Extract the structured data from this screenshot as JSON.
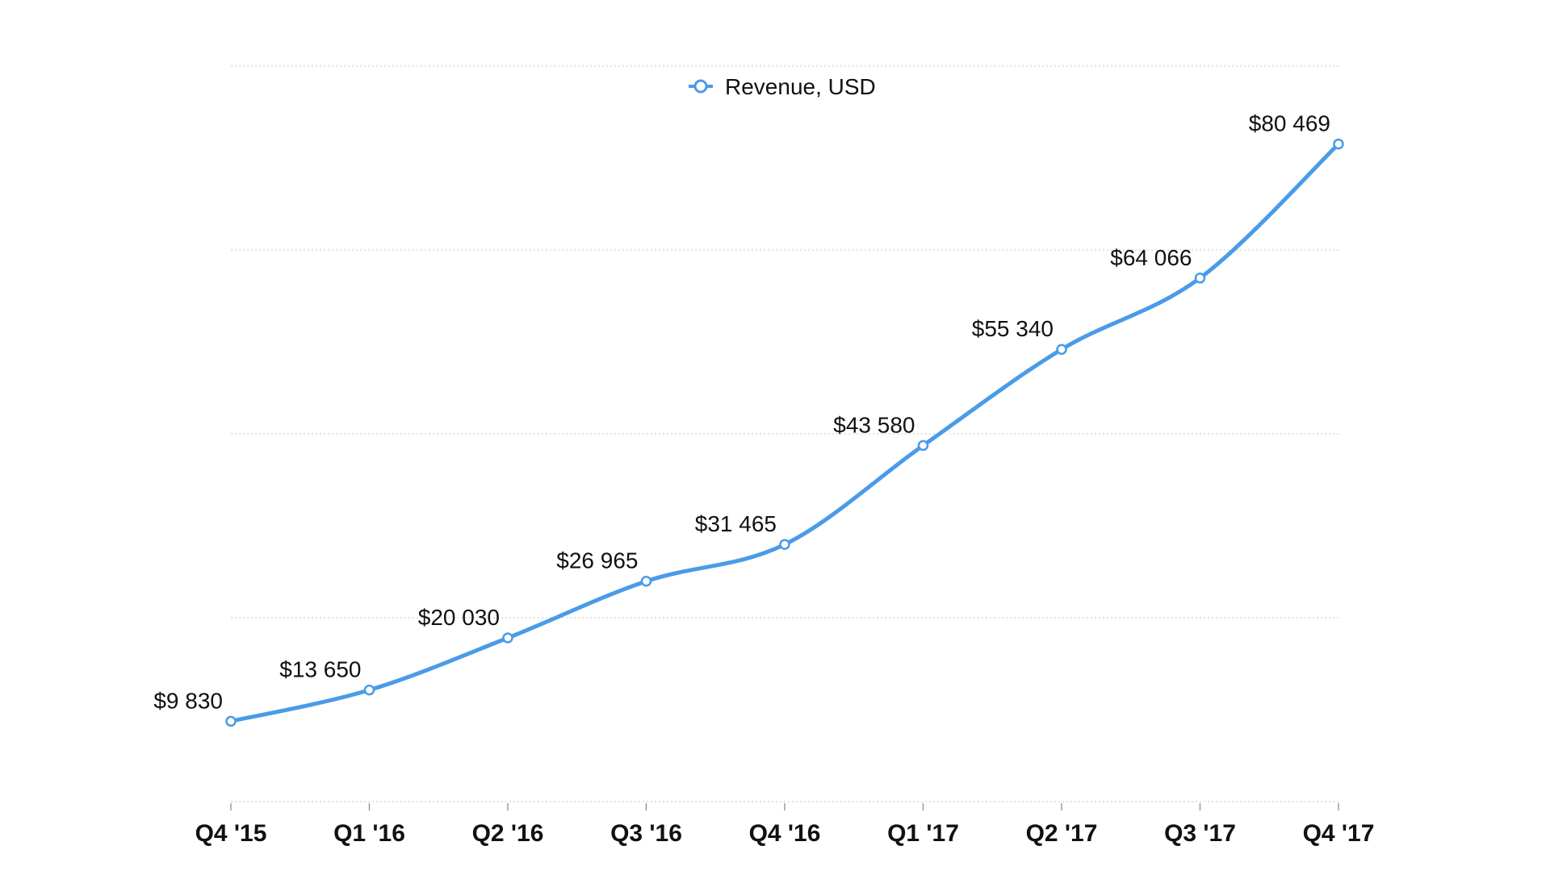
{
  "chart_data": {
    "type": "line",
    "title": "",
    "xlabel": "",
    "ylabel": "",
    "categories": [
      "Q4 '15",
      "Q1 '16",
      "Q2 '16",
      "Q3 '16",
      "Q4 '16",
      "Q1 '17",
      "Q2 '17",
      "Q3 '17",
      "Q4 '17"
    ],
    "series": [
      {
        "name": "Revenue, USD",
        "values": [
          9830,
          13650,
          20030,
          26965,
          31465,
          43580,
          55340,
          64066,
          80469
        ],
        "labels": [
          "$9 830",
          "$13 650",
          "$20 030",
          "$26 965",
          "$31 465",
          "$43 580",
          "$55 340",
          "$64 066",
          "$80 469"
        ],
        "color": "#4a9be8"
      }
    ],
    "ylim": [
      -200,
      90000
    ],
    "y_gridlines": [
      0,
      22500,
      45000,
      67500,
      90000
    ],
    "y_tick_labels_shown": false,
    "grid": true,
    "legend_position": "top-center",
    "line_style": "smooth",
    "marker": "hollow-circle"
  }
}
